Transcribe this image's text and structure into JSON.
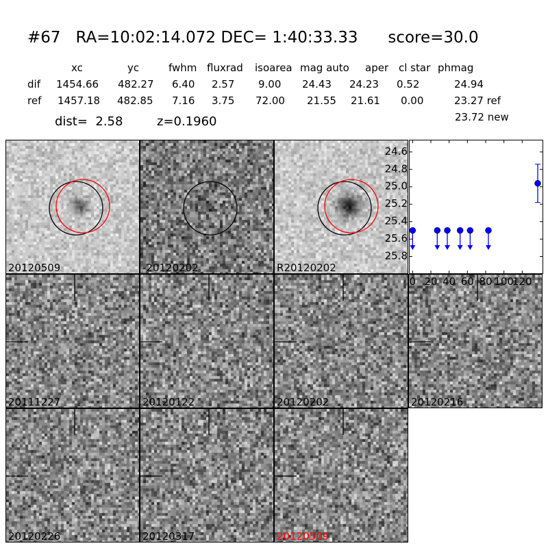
{
  "header": {
    "title": "#67   RA=10:02:14.072 DEC= 1:40:33.33      score=30.0",
    "columns": [
      "xc",
      "yc",
      "fwhm",
      "fluxrad",
      "isoarea",
      "mag auto",
      "aper",
      "cl star",
      "phmag"
    ],
    "rows": [
      {
        "label": "dif",
        "values": [
          "1454.66",
          "482.27",
          "6.40",
          "2.57",
          "9.00",
          "24.43",
          "24.23",
          "0.52",
          "24.94"
        ]
      },
      {
        "label": "ref",
        "values": [
          "1457.18",
          "482.85",
          "7.16",
          "3.75",
          "72.00",
          "21.55",
          "21.61",
          "0.00",
          "23.27 ref"
        ]
      }
    ],
    "extra_phmag": "23.72 new",
    "dist": "dist=  2.58",
    "z": "z=0.1960"
  },
  "stamps": [
    {
      "label": "20120509",
      "source": true,
      "circles": [
        "black",
        "red"
      ]
    },
    {
      "label": "-20120202",
      "source": false,
      "circles": [
        "black"
      ]
    },
    {
      "label": "R20120202",
      "source": true,
      "circles": [
        "black",
        "red"
      ]
    },
    {
      "label": "20111227",
      "crosshair": true
    },
    {
      "label": "20120122",
      "crosshair": true
    },
    {
      "label": "20120202",
      "crosshair": true
    },
    {
      "label": "20120216",
      "crosshair": true
    },
    {
      "label": "20120226",
      "crosshair": true
    },
    {
      "label": "20120317",
      "crosshair": true
    },
    {
      "label": "20120509",
      "crosshair": true,
      "label_color": "#ff0000"
    }
  ],
  "chart_data": {
    "type": "scatter",
    "xlim": [
      -4,
      143
    ],
    "ylim": [
      26.0,
      24.46
    ],
    "y_inverted": true,
    "xticks": [
      "0",
      "20",
      "40",
      "60",
      "80",
      "100",
      "120"
    ],
    "yticks": [
      "24.6",
      "24.8",
      "25.0",
      "25.2",
      "25.4",
      "25.6",
      "25.8"
    ],
    "color": "#0000ff",
    "upper_limits": [
      {
        "x": 0,
        "y": 25.5
      },
      {
        "x": 27,
        "y": 25.5
      },
      {
        "x": 38,
        "y": 25.5
      },
      {
        "x": 52,
        "y": 25.5
      },
      {
        "x": 63,
        "y": 25.5
      },
      {
        "x": 83,
        "y": 25.5
      }
    ],
    "detections": [
      {
        "x": 137,
        "y": 24.96,
        "yerr": 0.22
      }
    ]
  }
}
